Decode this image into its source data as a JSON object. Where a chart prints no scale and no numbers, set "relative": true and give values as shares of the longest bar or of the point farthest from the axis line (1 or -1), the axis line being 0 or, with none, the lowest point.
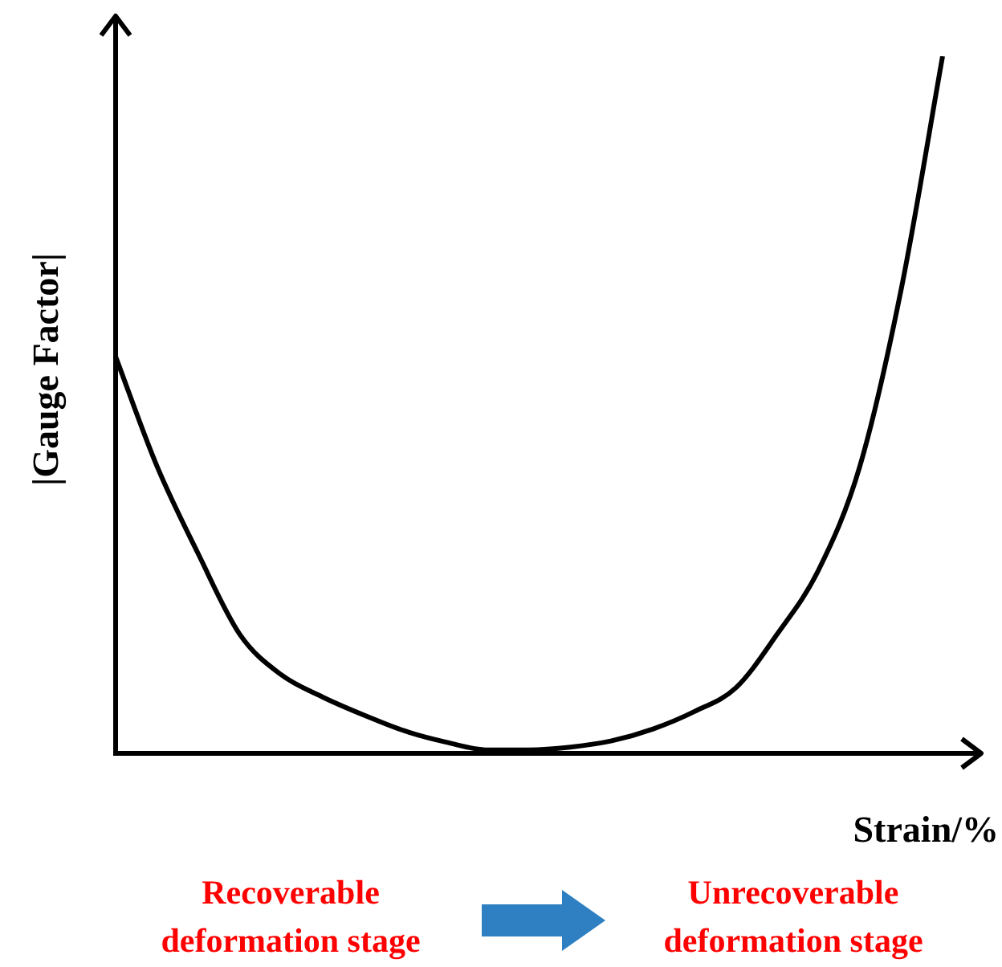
{
  "chart_data": {
    "type": "line",
    "relative": true,
    "xlabel": "Strain/%",
    "ylabel": "|Gauge Factor|",
    "categories": [
      null,
      null,
      null,
      null,
      null,
      null,
      null,
      null,
      null,
      null,
      null,
      null,
      null,
      null,
      null,
      null,
      null,
      null,
      null,
      null,
      null
    ],
    "series": [
      {
        "color": "#000000",
        "values": [
          0.569,
          0.412,
          0.286,
          0.171,
          0.113,
          0.081,
          0.055,
          0.032,
          0.016,
          0.005,
          0.005,
          0.009,
          0.018,
          0.035,
          0.06,
          0.094,
          0.171,
          0.263,
          0.412,
          0.666,
          1
        ]
      }
    ],
    "annotations": [
      "Recoverable deformation stage",
      "Unrecoverable deformation stage"
    ],
    "marker": "none",
    "legend": false,
    "grid": false
  }
}
